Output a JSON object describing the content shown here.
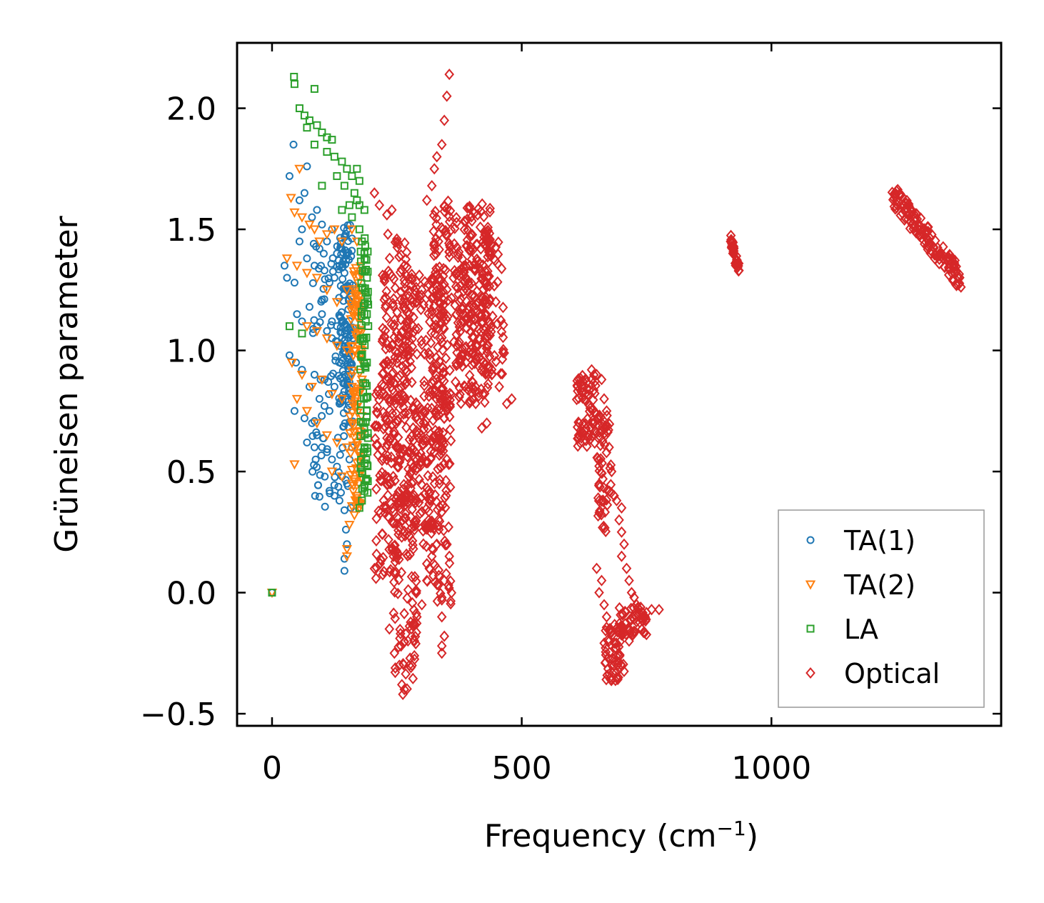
{
  "chart_data": {
    "type": "scatter",
    "title": "",
    "xlabel_main": "Frequency (cm",
    "xlabel_sup": "−1",
    "xlabel_tail": ")",
    "ylabel": "Grüneisen parameter",
    "xlim": [
      -70,
      1460
    ],
    "ylim": [
      -0.55,
      2.27
    ],
    "xticks": [
      0,
      500,
      1000
    ],
    "xtick_labels": [
      "0",
      "500",
      "1000"
    ],
    "yticks": [
      -0.5,
      0.0,
      0.5,
      1.0,
      1.5,
      2.0
    ],
    "ytick_labels": [
      "−0.5",
      "0.0",
      "0.5",
      "1.0",
      "1.5",
      "2.0"
    ],
    "legend_position": "lower-right",
    "series": [
      {
        "name": "TA(1)",
        "marker": "circle",
        "color": "#1f77b4",
        "points": [
          [
            0,
            0
          ],
          [
            43,
            1.85
          ],
          [
            35,
            1.72
          ],
          [
            70,
            1.76
          ],
          [
            65,
            1.65
          ],
          [
            55,
            1.62
          ],
          [
            80,
            1.55
          ],
          [
            60,
            1.5
          ],
          [
            90,
            1.58
          ],
          [
            100,
            1.52
          ],
          [
            110,
            1.45
          ],
          [
            120,
            1.5
          ],
          [
            130,
            1.4
          ],
          [
            140,
            1.42
          ],
          [
            25,
            1.35
          ],
          [
            30,
            1.3
          ],
          [
            45,
            1.28
          ],
          [
            55,
            1.45
          ],
          [
            70,
            1.38
          ],
          [
            85,
            1.35
          ],
          [
            95,
            1.42
          ],
          [
            105,
            1.33
          ],
          [
            115,
            1.28
          ],
          [
            125,
            1.3
          ],
          [
            135,
            1.35
          ],
          [
            145,
            1.32
          ],
          [
            150,
            1.25
          ],
          [
            50,
            1.15
          ],
          [
            60,
            1.12
          ],
          [
            75,
            1.18
          ],
          [
            90,
            1.1
          ],
          [
            100,
            1.15
          ],
          [
            110,
            1.08
          ],
          [
            120,
            1.12
          ],
          [
            130,
            1.1
          ],
          [
            140,
            1.05
          ],
          [
            155,
            1.0
          ],
          [
            35,
            0.98
          ],
          [
            48,
            0.95
          ],
          [
            60,
            0.92
          ],
          [
            75,
            0.85
          ],
          [
            85,
            0.9
          ],
          [
            95,
            0.8
          ],
          [
            105,
            0.88
          ],
          [
            115,
            0.75
          ],
          [
            125,
            0.85
          ],
          [
            135,
            0.78
          ],
          [
            145,
            0.9
          ],
          [
            155,
            0.82
          ],
          [
            45,
            0.75
          ],
          [
            65,
            0.72
          ],
          [
            80,
            0.7
          ],
          [
            90,
            0.65
          ],
          [
            100,
            0.6
          ],
          [
            110,
            0.58
          ],
          [
            120,
            0.55
          ],
          [
            130,
            0.52
          ],
          [
            140,
            0.48
          ],
          [
            150,
            0.45
          ],
          [
            70,
            0.62
          ],
          [
            85,
            0.6
          ],
          [
            115,
            0.42
          ],
          [
            125,
            0.4
          ],
          [
            135,
            0.38
          ],
          [
            145,
            0.34
          ],
          [
            148,
            0.26
          ],
          [
            150,
            0.2
          ],
          [
            145,
            0.14
          ],
          [
            145,
            0.09
          ],
          [
            160,
            1.2
          ],
          [
            162,
            1.05
          ],
          [
            158,
            0.95
          ],
          [
            160,
            0.7
          ],
          [
            155,
            0.55
          ],
          [
            160,
            0.6
          ],
          [
            158,
            0.35
          ]
        ],
        "clusters": [
          [
            148,
            1.1,
            14,
            0.42,
            110
          ],
          [
            120,
            0.9,
            40,
            0.55,
            90
          ]
        ]
      },
      {
        "name": "TA(2)",
        "marker": "triangle-down",
        "color": "#ff7f0e",
        "points": [
          [
            0,
            0
          ],
          [
            55,
            1.75
          ],
          [
            38,
            1.63
          ],
          [
            45,
            1.57
          ],
          [
            60,
            1.55
          ],
          [
            75,
            1.52
          ],
          [
            85,
            1.5
          ],
          [
            95,
            1.45
          ],
          [
            110,
            1.48
          ],
          [
            125,
            1.5
          ],
          [
            140,
            1.45
          ],
          [
            160,
            1.5
          ],
          [
            170,
            1.45
          ],
          [
            30,
            1.38
          ],
          [
            50,
            1.35
          ],
          [
            70,
            1.32
          ],
          [
            90,
            1.3
          ],
          [
            110,
            1.25
          ],
          [
            130,
            1.2
          ],
          [
            150,
            1.25
          ],
          [
            170,
            1.2
          ],
          [
            180,
            1.22
          ],
          [
            70,
            1.1
          ],
          [
            90,
            1.08
          ],
          [
            110,
            1.05
          ],
          [
            130,
            1.02
          ],
          [
            150,
            1.0
          ],
          [
            170,
            1.05
          ],
          [
            180,
            1.0
          ],
          [
            40,
            0.95
          ],
          [
            60,
            0.9
          ],
          [
            80,
            0.85
          ],
          [
            100,
            0.88
          ],
          [
            120,
            0.82
          ],
          [
            140,
            0.8
          ],
          [
            160,
            0.85
          ],
          [
            180,
            0.88
          ],
          [
            50,
            0.8
          ],
          [
            70,
            0.75
          ],
          [
            90,
            0.7
          ],
          [
            110,
            0.65
          ],
          [
            130,
            0.62
          ],
          [
            150,
            0.6
          ],
          [
            170,
            0.62
          ],
          [
            180,
            0.65
          ],
          [
            45,
            0.53
          ],
          [
            120,
            0.5
          ],
          [
            140,
            0.48
          ],
          [
            160,
            0.45
          ],
          [
            170,
            0.4
          ],
          [
            175,
            0.35
          ],
          [
            165,
            0.32
          ],
          [
            155,
            0.28
          ],
          [
            150,
            0.18
          ],
          [
            150,
            0.15
          ],
          [
            180,
            0.55
          ]
        ],
        "clusters": [
          [
            168,
            0.85,
            12,
            0.5,
            110
          ]
        ]
      },
      {
        "name": "LA",
        "marker": "square",
        "color": "#2ca02c",
        "points": [
          [
            0,
            0
          ],
          [
            44,
            2.13
          ],
          [
            45,
            2.1
          ],
          [
            85,
            2.08
          ],
          [
            55,
            2.0
          ],
          [
            65,
            1.97
          ],
          [
            75,
            1.95
          ],
          [
            70,
            1.92
          ],
          [
            90,
            1.93
          ],
          [
            100,
            1.9
          ],
          [
            110,
            1.88
          ],
          [
            120,
            1.87
          ],
          [
            85,
            1.85
          ],
          [
            110,
            1.82
          ],
          [
            125,
            1.8
          ],
          [
            140,
            1.78
          ],
          [
            150,
            1.75
          ],
          [
            130,
            1.72
          ],
          [
            100,
            1.68
          ],
          [
            145,
            1.68
          ],
          [
            160,
            1.72
          ],
          [
            170,
            1.75
          ],
          [
            175,
            1.7
          ],
          [
            165,
            1.65
          ],
          [
            155,
            1.6
          ],
          [
            170,
            1.62
          ],
          [
            175,
            1.6
          ],
          [
            185,
            1.58
          ],
          [
            140,
            1.58
          ],
          [
            160,
            1.55
          ],
          [
            175,
            1.5
          ],
          [
            180,
            1.45
          ],
          [
            185,
            1.4
          ],
          [
            35,
            1.1
          ],
          [
            60,
            1.07
          ],
          [
            190,
            1.3
          ],
          [
            190,
            1.15
          ],
          [
            190,
            0.95
          ],
          [
            190,
            0.75
          ],
          [
            185,
            0.6
          ],
          [
            180,
            0.5
          ],
          [
            185,
            0.42
          ],
          [
            180,
            0.38
          ],
          [
            175,
            0.35
          ]
        ],
        "clusters": [
          [
            185,
            0.95,
            8,
            0.55,
            80
          ]
        ]
      },
      {
        "name": "Optical",
        "marker": "diamond",
        "color": "#d62728",
        "points": [
          [
            355,
            2.14
          ],
          [
            350,
            2.05
          ],
          [
            345,
            1.95
          ],
          [
            340,
            1.85
          ],
          [
            330,
            1.8
          ],
          [
            325,
            1.75
          ],
          [
            320,
            1.68
          ],
          [
            310,
            1.62
          ],
          [
            205,
            1.65
          ],
          [
            215,
            1.6
          ],
          [
            230,
            1.56
          ],
          [
            240,
            1.58
          ],
          [
            250,
            1.46
          ],
          [
            232,
            1.48
          ],
          [
            300,
            1.25
          ],
          [
            290,
            1.2
          ],
          [
            270,
            1.1
          ],
          [
            260,
            1.0
          ],
          [
            250,
            0.95
          ],
          [
            480,
            0.8
          ],
          [
            470,
            0.78
          ],
          [
            455,
            0.85
          ],
          [
            440,
            0.9
          ],
          [
            430,
            0.7
          ],
          [
            420,
            0.68
          ],
          [
            345,
            0.72
          ],
          [
            340,
            0.6
          ],
          [
            350,
            0.55
          ],
          [
            335,
            0.45
          ],
          [
            350,
            0.2
          ],
          [
            355,
            0.15
          ],
          [
            345,
            0.05
          ],
          [
            340,
            -0.02
          ],
          [
            340,
            -0.1
          ],
          [
            345,
            -0.18
          ],
          [
            340,
            -0.22
          ],
          [
            340,
            -0.25
          ],
          [
            340,
            -0.03
          ],
          [
            235,
            -0.15
          ],
          [
            245,
            -0.25
          ],
          [
            255,
            -0.3
          ],
          [
            260,
            -0.38
          ],
          [
            262,
            -0.42
          ],
          [
            265,
            -0.4
          ],
          [
            275,
            -0.3
          ],
          [
            285,
            -0.2
          ],
          [
            290,
            -0.1
          ],
          [
            300,
            -0.05
          ],
          [
            310,
            0.05
          ],
          [
            315,
            0.1
          ],
          [
            320,
            0.15
          ],
          [
            330,
            0.2
          ],
          [
            640,
            0.92
          ],
          [
            650,
            0.9
          ],
          [
            660,
            0.88
          ],
          [
            665,
            0.8
          ],
          [
            670,
            0.75
          ],
          [
            675,
            0.6
          ],
          [
            680,
            0.5
          ],
          [
            685,
            0.4
          ],
          [
            690,
            0.38
          ],
          [
            700,
            0.35
          ],
          [
            695,
            0.3
          ],
          [
            700,
            0.25
          ],
          [
            705,
            0.2
          ],
          [
            700,
            0.15
          ],
          [
            710,
            0.1
          ],
          [
            715,
            0.05
          ],
          [
            720,
            0.0
          ],
          [
            725,
            -0.02
          ],
          [
            730,
            -0.05
          ],
          [
            650,
            0.1
          ],
          [
            655,
            0.0
          ],
          [
            660,
            0.05
          ],
          [
            665,
            -0.05
          ],
          [
            670,
            -0.1
          ],
          [
            675,
            -0.2
          ],
          [
            680,
            -0.3
          ],
          [
            690,
            -0.35
          ],
          [
            700,
            -0.3
          ],
          [
            715,
            -0.2
          ],
          [
            730,
            -0.12
          ],
          [
            745,
            -0.1
          ],
          [
            760,
            -0.07
          ],
          [
            775,
            -0.07
          ],
          [
            920,
            1.45
          ],
          [
            925,
            1.4
          ],
          [
            930,
            1.35
          ],
          [
            935,
            1.33
          ]
        ],
        "clusters": [
          [
            380,
            1.2,
            60,
            0.42,
            300
          ],
          [
            300,
            0.8,
            45,
            0.55,
            220
          ],
          [
            250,
            0.9,
            30,
            0.55,
            160
          ],
          [
            230,
            0.45,
            25,
            0.4,
            100
          ],
          [
            265,
            0.0,
            25,
            0.4,
            80
          ],
          [
            320,
            0.4,
            40,
            0.45,
            120
          ],
          [
            420,
            1.2,
            45,
            0.3,
            120
          ],
          [
            630,
            0.75,
            20,
            0.15,
            70
          ],
          [
            665,
            0.5,
            15,
            0.25,
            60
          ],
          [
            685,
            -0.25,
            20,
            0.12,
            60
          ],
          [
            720,
            -0.12,
            30,
            0.06,
            50
          ]
        ],
        "bands": [
          [
            1240,
            1.65,
            1380,
            1.29,
            0.05,
            140
          ],
          [
            918,
            1.46,
            935,
            1.33,
            0.03,
            35
          ]
        ]
      }
    ]
  }
}
